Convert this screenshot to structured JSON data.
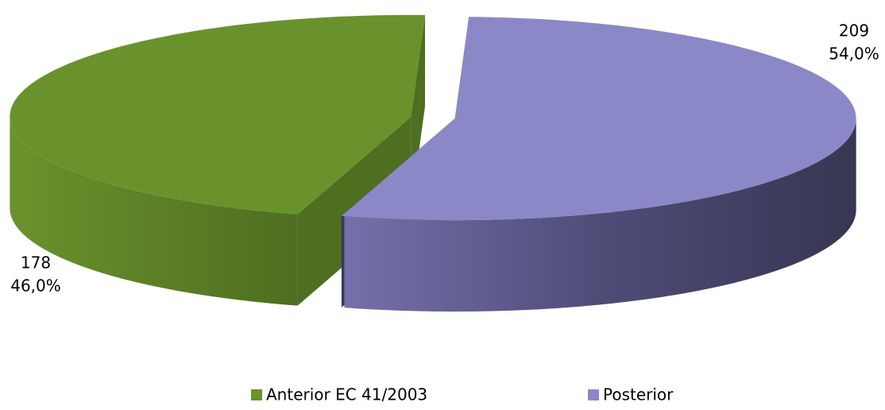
{
  "chart_data": {
    "type": "pie",
    "categories": [
      "Anterior EC 41/2003",
      "Posterior"
    ],
    "values": [
      178,
      209
    ],
    "percentages": [
      46.0,
      54.0
    ],
    "percentage_labels": [
      "46,0%",
      "54,0%"
    ],
    "colors": [
      "#6a922c",
      "#8b88c8"
    ],
    "legend": "bottom"
  }
}
